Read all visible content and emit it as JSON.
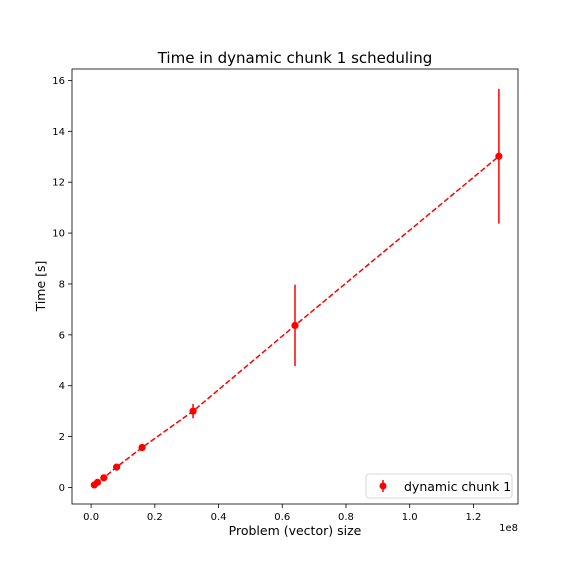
{
  "chart_data": {
    "type": "scatter",
    "title": "Time in dynamic chunk 1 scheduling",
    "xlabel": "Problem (vector) size",
    "ylabel": "Time [s]",
    "x_offset_label": "1e8",
    "x_scale": 100000000,
    "xlim": [
      -0.06,
      1.34
    ],
    "ylim": [
      -0.65,
      16.45
    ],
    "x_ticks": [
      0.0,
      0.2,
      0.4,
      0.6,
      0.8,
      1.0,
      1.2
    ],
    "x_tick_labels": [
      "0.0",
      "0.2",
      "0.4",
      "0.6",
      "0.8",
      "1.0",
      "1.2"
    ],
    "y_ticks": [
      0,
      2,
      4,
      6,
      8,
      10,
      12,
      14,
      16
    ],
    "y_tick_labels": [
      "0",
      "2",
      "4",
      "6",
      "8",
      "10",
      "12",
      "14",
      "16"
    ],
    "grid": false,
    "legend_position": "lower-right",
    "series": [
      {
        "name": "dynamic chunk 1",
        "color": "#ff0000",
        "line_style": "dashed",
        "marker": "circle",
        "x": [
          1000000,
          2000000,
          4000000,
          8000000,
          16000000,
          32000000,
          64000000,
          128000000
        ],
        "y": [
          0.1,
          0.2,
          0.38,
          0.8,
          1.57,
          3.0,
          6.37,
          13.02
        ],
        "yerr": [
          0.05,
          0.05,
          0.07,
          0.1,
          0.1,
          0.28,
          1.6,
          2.65
        ]
      }
    ]
  }
}
